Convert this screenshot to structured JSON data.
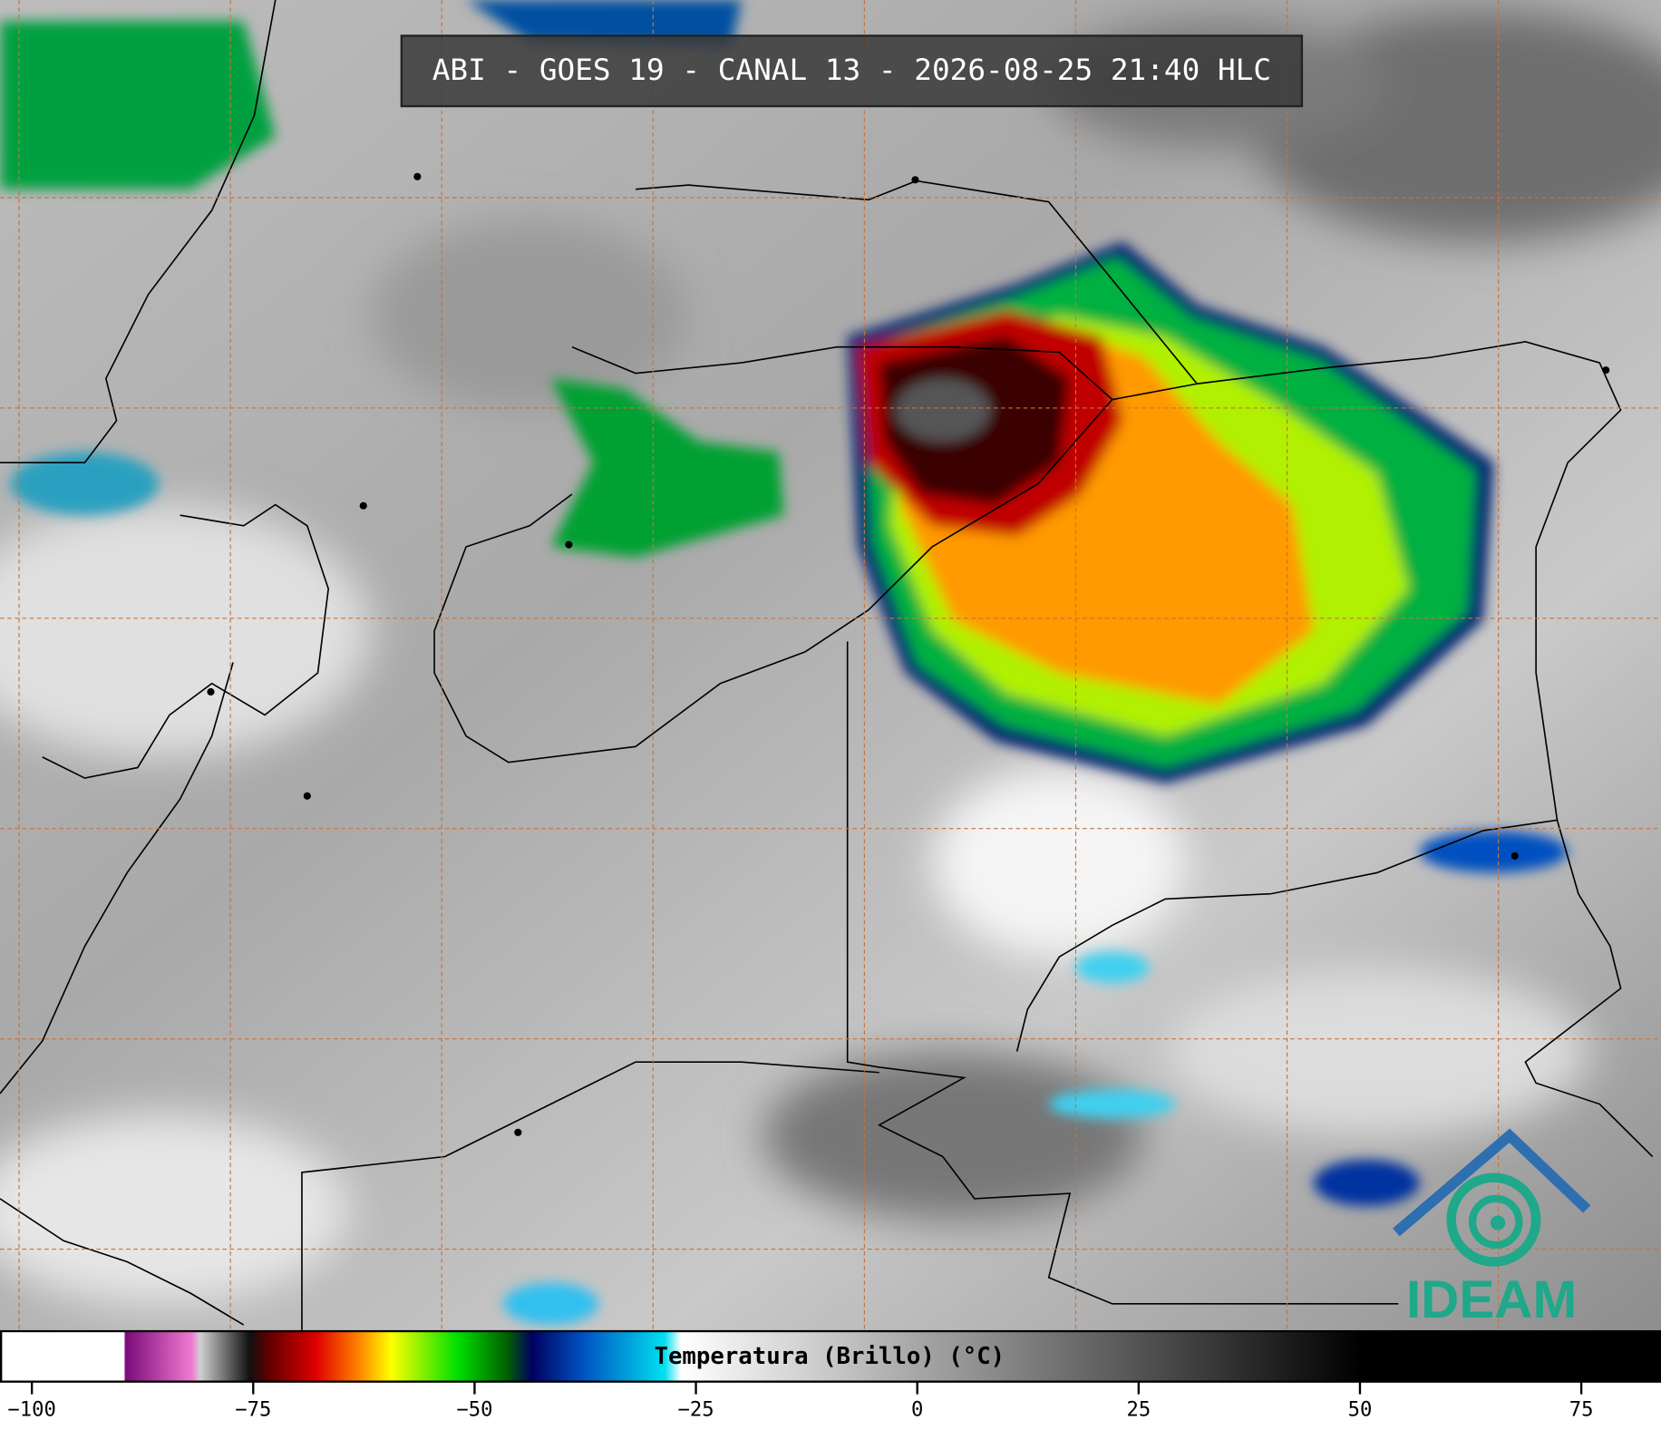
{
  "title": "ABI - GOES 19 - CANAL 13 - 2026-08-25 21:40 HLC",
  "colorbar": {
    "label": "Temperatura (Brillo) (°C)",
    "range": [
      -103.6,
      84.0
    ],
    "ticks": [
      {
        "value": -100,
        "label": "−100"
      },
      {
        "value": -75,
        "label": "−75"
      },
      {
        "value": -50,
        "label": "−50"
      },
      {
        "value": -25,
        "label": "−25"
      },
      0,
      25,
      50,
      75
    ]
  },
  "logo": "IDEAM"
}
